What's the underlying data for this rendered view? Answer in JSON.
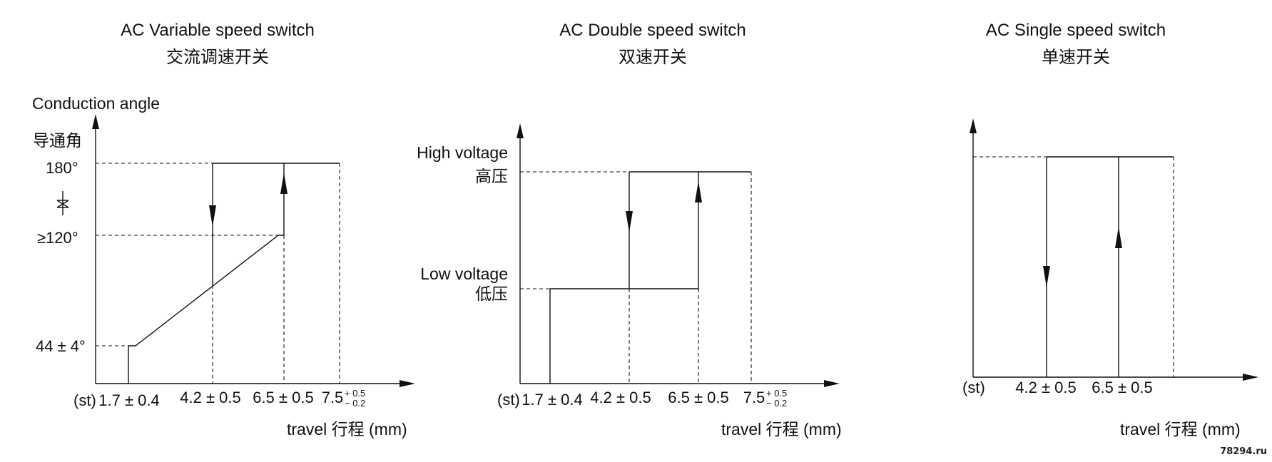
{
  "panels": [
    {
      "title_en": "AC  Variable speed switch",
      "title_cn": "交流调速开关",
      "ylabel_en": "Conduction angle",
      "ylabel_cn": "导通角",
      "y_levels": [
        "180°",
        "≥120°",
        "44 ± 4°"
      ],
      "x_ticks": [
        "(st)",
        "1.7 ± 0.4",
        "4.2 ± 0.5",
        "6.5 ± 0.5",
        "7.5"
      ],
      "x_tick_tol_upper": "+ 0.5",
      "x_tick_tol_lower": "− 0.2",
      "xlabel": "travel  行程 (mm)"
    },
    {
      "title_en": "AC  Double speed switch",
      "title_cn": "双速开关",
      "y_high_en": "High voltage",
      "y_high_cn": "高压",
      "y_low_en": "Low voltage",
      "y_low_cn": "低压",
      "x_ticks": [
        "(st)",
        "1.7 ± 0.4",
        "4.2 ± 0.5",
        "6.5 ± 0.5",
        "7.5"
      ],
      "x_tick_tol_upper": "+ 0.5",
      "x_tick_tol_lower": "− 0.2",
      "xlabel": "travel  行程 (mm)"
    },
    {
      "title_en": "AC  Single speed switch",
      "title_cn": "单速开关",
      "x_ticks": [
        "(st)",
        "4.2 ± 0.5",
        "6.5 ± 0.5"
      ],
      "xlabel": "travel  行程 (mm)"
    }
  ],
  "watermark": "78294.ru",
  "icons": [
    "diode-thyristor-symbol-icon"
  ]
}
